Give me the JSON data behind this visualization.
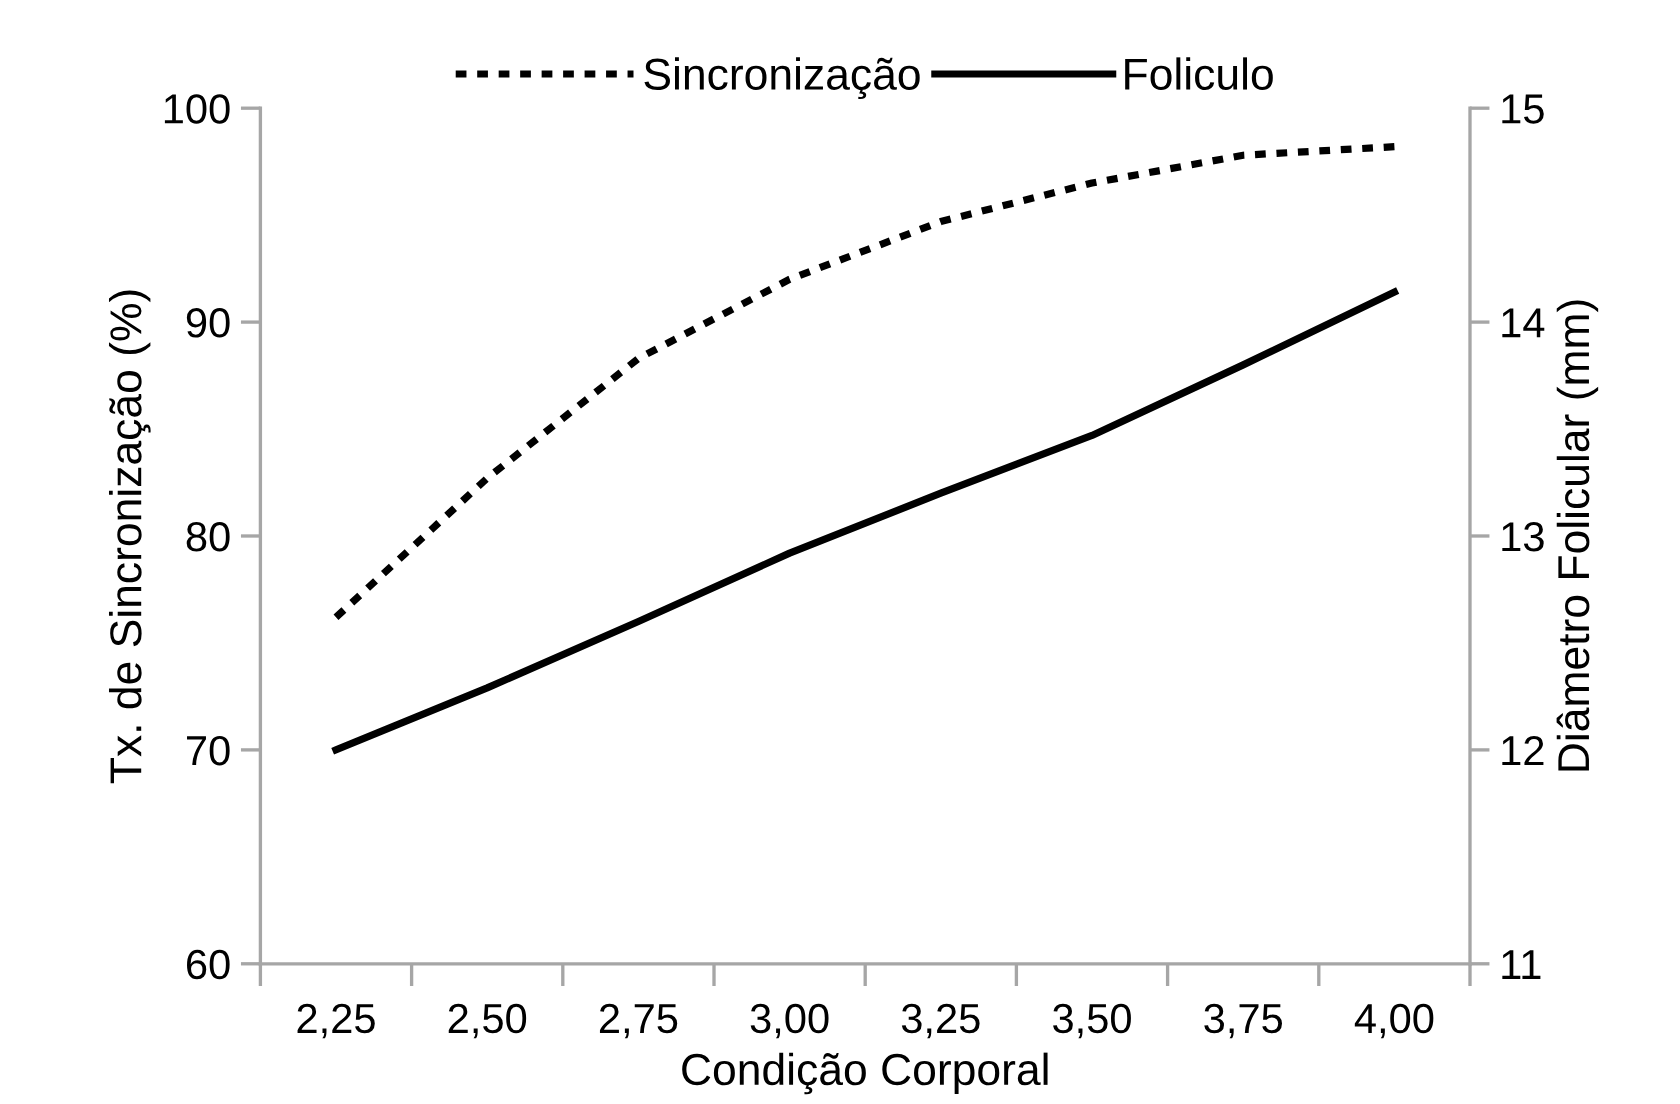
{
  "chart_data": {
    "type": "line",
    "xlabel": "Condição Corporal",
    "ylabel": "Tx. de Sincronização (%)",
    "y2label": "Diâmetro Folicular (mm)",
    "categories": [
      "2,25",
      "2,50",
      "2,75",
      "3,00",
      "3,25",
      "3,50",
      "3,75",
      "4,00"
    ],
    "series": [
      {
        "name": "Sincronização",
        "color": "#000000",
        "line_style": "dashed",
        "values": [
          76.2,
          82.7,
          88.3,
          92.0,
          94.7,
          96.5,
          97.8,
          98.2
        ]
      },
      {
        "name": "Foliculo",
        "color": "#000000",
        "line_style": "solid",
        "axis": "y2",
        "values": [
          12.0,
          12.29,
          12.6,
          12.92,
          13.2,
          13.47,
          13.8,
          14.14
        ]
      }
    ],
    "ylim": [
      60,
      100
    ],
    "yticks": [
      60,
      70,
      80,
      90,
      100
    ],
    "y2lim": [
      11,
      15
    ],
    "y2ticks": [
      11,
      12,
      13,
      14,
      15
    ],
    "grid": false,
    "legend": "top"
  }
}
